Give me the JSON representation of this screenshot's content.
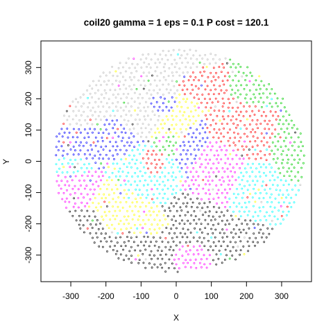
{
  "chart_data": {
    "type": "scatter",
    "title": "coil20 gamma = 1 eps = 0.1 P cost = 120.1",
    "xlabel": "X",
    "ylabel": "Y",
    "xlim": [
      -385,
      385
    ],
    "ylim": [
      -385,
      385
    ],
    "xticks": [
      -300,
      -200,
      -100,
      0,
      100,
      200,
      300
    ],
    "yticks": [
      -300,
      -200,
      -100,
      0,
      100,
      200,
      300
    ],
    "xtick_labels": [
      "-300",
      "-200",
      "-100",
      "0",
      "100",
      "200",
      "300"
    ],
    "ytick_labels": [
      "-300",
      "-200",
      "-100",
      "0",
      "100",
      "200",
      "300"
    ],
    "grid": false,
    "legend": "none",
    "marker": "open-circle",
    "point_extent": {
      "x_min": -350,
      "x_max": 365,
      "y_min": -355,
      "y_max": 360
    },
    "palette": [
      "#000000",
      "#FF0000",
      "#00CD00",
      "#0000FF",
      "#00FFFF",
      "#FF00FF",
      "#FFFF00",
      "#BEBEBE"
    ],
    "clusters": [
      {
        "color": "#BEBEBE",
        "x": -150,
        "y": 260,
        "rx": 130,
        "ry": 90
      },
      {
        "color": "#BEBEBE",
        "x": -40,
        "y": 320,
        "rx": 120,
        "ry": 40
      },
      {
        "color": "#BEBEBE",
        "x": -260,
        "y": 150,
        "rx": 60,
        "ry": 60
      },
      {
        "color": "#BEBEBE",
        "x": -80,
        "y": 160,
        "rx": 60,
        "ry": 50
      },
      {
        "color": "#0000FF",
        "x": -240,
        "y": 60,
        "rx": 80,
        "ry": 80
      },
      {
        "color": "#0000FF",
        "x": -50,
        "y": 170,
        "rx": 60,
        "ry": 40
      },
      {
        "color": "#0000FF",
        "x": 50,
        "y": 80,
        "rx": 50,
        "ry": 90
      },
      {
        "color": "#FFFF00",
        "x": 20,
        "y": 130,
        "rx": 70,
        "ry": 70
      },
      {
        "color": "#FFFF00",
        "x": -180,
        "y": -140,
        "rx": 80,
        "ry": 80
      },
      {
        "color": "#FFFF00",
        "x": -90,
        "y": -210,
        "rx": 50,
        "ry": 40
      },
      {
        "color": "#FF0000",
        "x": 170,
        "y": 130,
        "rx": 110,
        "ry": 100
      },
      {
        "color": "#FF0000",
        "x": 90,
        "y": 240,
        "rx": 70,
        "ry": 60
      },
      {
        "color": "#FF0000",
        "x": -70,
        "y": -20,
        "rx": 40,
        "ry": 40
      },
      {
        "color": "#00CD00",
        "x": 230,
        "y": 230,
        "rx": 90,
        "ry": 80
      },
      {
        "color": "#00CD00",
        "x": 320,
        "y": 60,
        "rx": 40,
        "ry": 80
      },
      {
        "color": "#00CD00",
        "x": -20,
        "y": 60,
        "rx": 30,
        "ry": 30
      },
      {
        "color": "#00FFFF",
        "x": -100,
        "y": -50,
        "rx": 90,
        "ry": 60
      },
      {
        "color": "#00FFFF",
        "x": 220,
        "y": -110,
        "rx": 70,
        "ry": 80
      },
      {
        "color": "#00FFFF",
        "x": -280,
        "y": -20,
        "rx": 50,
        "ry": 40
      },
      {
        "color": "#FF00FF",
        "x": -270,
        "y": -80,
        "rx": 60,
        "ry": 80
      },
      {
        "color": "#FF00FF",
        "x": 110,
        "y": -30,
        "rx": 70,
        "ry": 110
      },
      {
        "color": "#FF00FF",
        "x": 30,
        "y": -300,
        "rx": 50,
        "ry": 40
      },
      {
        "color": "#000000",
        "x": -100,
        "y": -280,
        "rx": 150,
        "ry": 60
      },
      {
        "color": "#000000",
        "x": 150,
        "y": -230,
        "rx": 90,
        "ry": 60
      },
      {
        "color": "#000000",
        "x": -250,
        "y": -200,
        "rx": 60,
        "ry": 60
      },
      {
        "color": "#000000",
        "x": 60,
        "y": -160,
        "rx": 60,
        "ry": 50
      }
    ]
  }
}
